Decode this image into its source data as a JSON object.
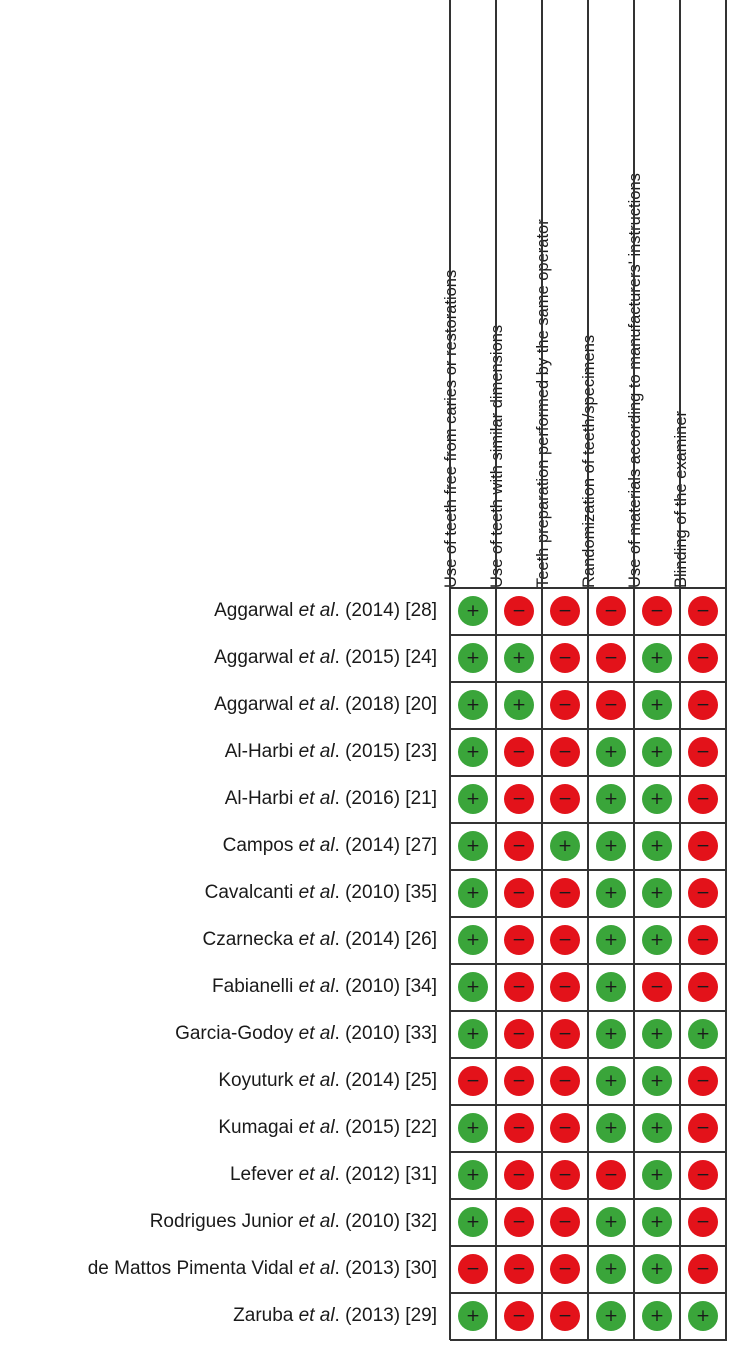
{
  "columns": [
    "Use of teeth free from caries or restorations",
    "Use of teeth with similar dimensions",
    "Teeth preparation performed by the same operator",
    "Randomization of teeth/specimens",
    "Use of materials according to manufacturers' instructions",
    "Blinding of the examiner"
  ],
  "rows": [
    {
      "author": "Aggarwal",
      "etal": "et al",
      "tail": ". (2014) [28]",
      "ratings": [
        "+",
        "-",
        "-",
        "-",
        "-",
        "-"
      ]
    },
    {
      "author": "Aggarwal",
      "etal": "et al",
      "tail": ". (2015) [24]",
      "ratings": [
        "+",
        "+",
        "-",
        "-",
        "+",
        "-"
      ]
    },
    {
      "author": "Aggarwal",
      "etal": "et al",
      "tail": ". (2018) [20]",
      "ratings": [
        "+",
        "+",
        "-",
        "-",
        "+",
        "-"
      ]
    },
    {
      "author": "Al-Harbi",
      "etal": "et al",
      "tail": ". (2015) [23]",
      "ratings": [
        "+",
        "-",
        "-",
        "+",
        "+",
        "-"
      ]
    },
    {
      "author": "Al-Harbi",
      "etal": "et al",
      "tail": ". (2016) [21]",
      "ratings": [
        "+",
        "-",
        "-",
        "+",
        "+",
        "-"
      ]
    },
    {
      "author": "Campos",
      "etal": "et al",
      "tail": ". (2014) [27]",
      "ratings": [
        "+",
        "-",
        "+",
        "+",
        "+",
        "-"
      ]
    },
    {
      "author": "Cavalcanti",
      "etal": "et al",
      "tail": ". (2010) [35]",
      "ratings": [
        "+",
        "-",
        "-",
        "+",
        "+",
        "-"
      ]
    },
    {
      "author": "Czarnecka",
      "etal": "et al",
      "tail": ". (2014) [26]",
      "ratings": [
        "+",
        "-",
        "-",
        "+",
        "+",
        "-"
      ]
    },
    {
      "author": "Fabianelli",
      "etal": "et al",
      "tail": ". (2010) [34]",
      "ratings": [
        "+",
        "-",
        "-",
        "+",
        "-",
        "-"
      ]
    },
    {
      "author": "Garcia-Godoy",
      "etal": "et al",
      "tail": ". (2010) [33]",
      "ratings": [
        "+",
        "-",
        "-",
        "+",
        "+",
        "+"
      ]
    },
    {
      "author": "Koyuturk",
      "etal": "et al",
      "tail": ". (2014) [25]",
      "ratings": [
        "-",
        "-",
        "-",
        "+",
        "+",
        "-"
      ]
    },
    {
      "author": "Kumagai",
      "etal": "et al",
      "tail": ". (2015) [22]",
      "ratings": [
        "+",
        "-",
        "-",
        "+",
        "+",
        "-"
      ]
    },
    {
      "author": "Lefever",
      "etal": "et al",
      "tail": ". (2012) [31]",
      "ratings": [
        "+",
        "-",
        "-",
        "-",
        "+",
        "-"
      ]
    },
    {
      "author": "Rodrigues Junior",
      "etal": "et al",
      "tail": ". (2010) [32]",
      "ratings": [
        "+",
        "-",
        "-",
        "+",
        "+",
        "-"
      ]
    },
    {
      "author": "de Mattos Pimenta Vidal",
      "etal": "et al",
      "tail": ". (2013) [30]",
      "ratings": [
        "-",
        "-",
        "-",
        "+",
        "+",
        "-"
      ]
    },
    {
      "author": "Zaruba",
      "etal": "et al",
      "tail": ". (2013) [29]",
      "ratings": [
        "+",
        "-",
        "-",
        "+",
        "+",
        "+"
      ]
    }
  ],
  "symbols": {
    "+": "+",
    "-": "−"
  },
  "colors": {
    "+": "#3aa53a",
    "-": "#e3121a",
    "grid": "#333333"
  }
}
